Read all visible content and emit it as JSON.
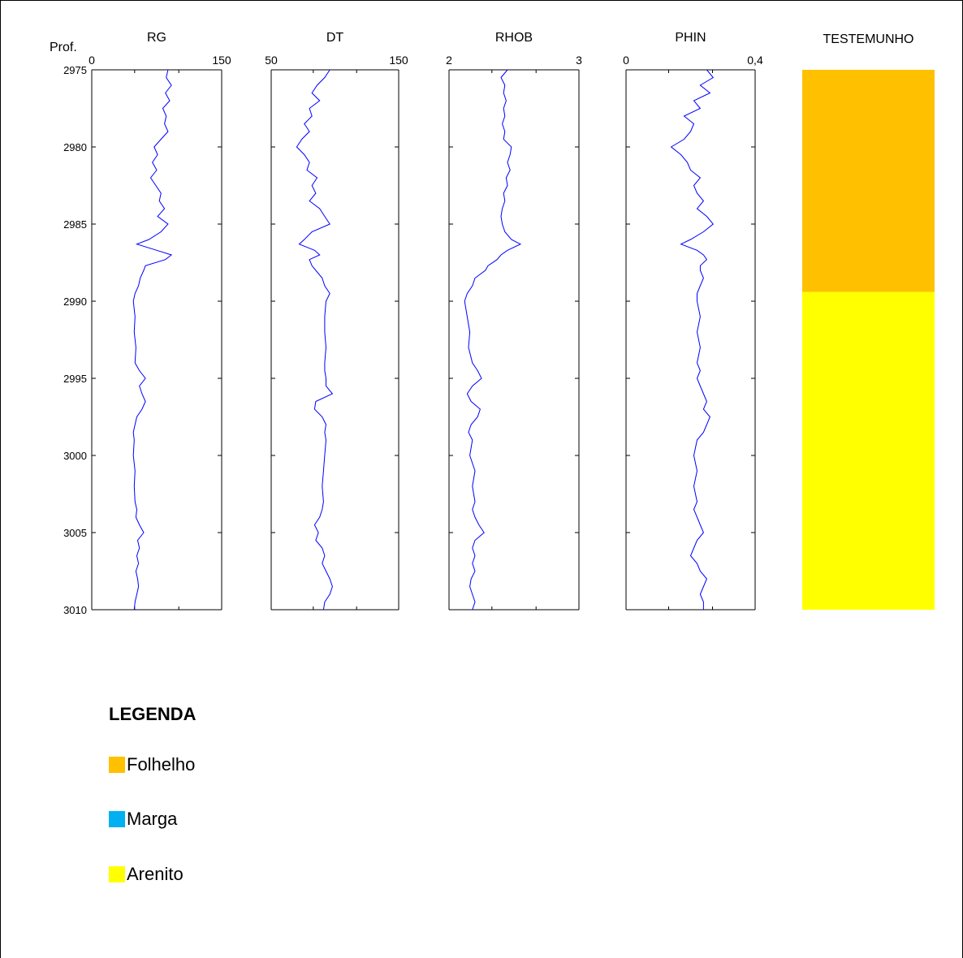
{
  "chart_data": {
    "type": "line",
    "depth_axis": {
      "label": "Prof.",
      "range": [
        2975,
        3010
      ],
      "ticks": [
        2975,
        2980,
        2985,
        2990,
        2995,
        3000,
        3005,
        3010
      ],
      "reversed": true
    },
    "series_color": "#0000ff",
    "tracks": [
      {
        "name": "RG",
        "xlim": [
          0,
          150
        ],
        "tick_labels": [
          "0",
          "150"
        ],
        "depth": [
          2975,
          2975.5,
          2976,
          2976.5,
          2977,
          2977.5,
          2978,
          2978.5,
          2979,
          2979.5,
          2980,
          2980.5,
          2981,
          2981.5,
          2982,
          2982.5,
          2983,
          2983.5,
          2984,
          2984.5,
          2985,
          2985.5,
          2986,
          2986.3,
          2986.7,
          2987,
          2987.3,
          2987.7,
          2988,
          2988.5,
          2989,
          2989.5,
          2990,
          2991,
          2992,
          2993,
          2994,
          2994.5,
          2995,
          2995.5,
          2996,
          2996.5,
          2997,
          2997.5,
          2998,
          2998.5,
          2999,
          3000,
          3001,
          3002,
          3003,
          3003.5,
          3004,
          3004.5,
          3005,
          3005.5,
          3006,
          3006.5,
          3007,
          3007.5,
          3008,
          3008.5,
          3009,
          3009.5,
          3010
        ],
        "values": [
          88,
          86,
          92,
          85,
          90,
          82,
          86,
          84,
          88,
          80,
          72,
          76,
          70,
          75,
          68,
          74,
          80,
          78,
          84,
          76,
          88,
          80,
          66,
          52,
          75,
          92,
          85,
          62,
          60,
          56,
          54,
          50,
          48,
          50,
          49,
          51,
          50,
          55,
          62,
          55,
          58,
          62,
          58,
          52,
          50,
          48,
          49,
          48,
          50,
          49,
          50,
          52,
          51,
          55,
          60,
          53,
          55,
          52,
          54,
          51,
          53,
          54,
          52,
          50,
          49
        ]
      },
      {
        "name": "DT",
        "xlim": [
          50,
          150
        ],
        "tick_labels": [
          "50",
          "150"
        ],
        "depth": [
          2975,
          2975.5,
          2976,
          2976.5,
          2977,
          2977.5,
          2978,
          2978.5,
          2979,
          2979.5,
          2980,
          2980.5,
          2981,
          2981.5,
          2982,
          2982.5,
          2983,
          2983.5,
          2984,
          2984.5,
          2985,
          2985.5,
          2986,
          2986.3,
          2986.7,
          2987,
          2987.3,
          2987.7,
          2988,
          2988.5,
          2989,
          2989.5,
          2990,
          2991,
          2992,
          2993,
          2994,
          2994.5,
          2995,
          2995.5,
          2996,
          2996.5,
          2997,
          2997.5,
          2998,
          2998.5,
          2999,
          3000,
          3001,
          3002,
          3003,
          3003.5,
          3004,
          3004.5,
          3005,
          3005.5,
          3006,
          3006.5,
          3007,
          3007.5,
          3008,
          3008.5,
          3009,
          3009.5,
          3010
        ],
        "values": [
          96,
          92,
          86,
          82,
          88,
          80,
          82,
          76,
          80,
          74,
          70,
          76,
          80,
          78,
          86,
          82,
          85,
          80,
          88,
          92,
          96,
          82,
          76,
          72,
          84,
          88,
          80,
          82,
          85,
          90,
          92,
          96,
          93,
          92,
          92,
          93,
          92,
          92,
          93,
          93,
          98,
          85,
          84,
          90,
          93,
          92,
          93,
          92,
          91,
          90,
          91,
          90,
          88,
          84,
          87,
          85,
          90,
          92,
          90,
          93,
          96,
          98,
          96,
          92,
          91
        ]
      },
      {
        "name": "RHOB",
        "xlim": [
          2,
          3
        ],
        "tick_labels": [
          "2",
          "3"
        ],
        "depth": [
          2975,
          2975.5,
          2976,
          2976.5,
          2977,
          2977.5,
          2978,
          2978.5,
          2979,
          2979.5,
          2980,
          2980.5,
          2981,
          2981.5,
          2982,
          2982.5,
          2983,
          2983.5,
          2984,
          2984.5,
          2985,
          2985.5,
          2986,
          2986.3,
          2986.7,
          2987,
          2987.3,
          2987.7,
          2988,
          2988.5,
          2989,
          2989.5,
          2990,
          2991,
          2992,
          2993,
          2994,
          2994.5,
          2995,
          2995.5,
          2996,
          2996.5,
          2997,
          2997.5,
          2998,
          2998.5,
          2999,
          3000,
          3001,
          3002,
          3003,
          3003.5,
          3004,
          3004.5,
          3005,
          3005.5,
          3006,
          3006.5,
          3007,
          3007.5,
          3008,
          3008.5,
          3009,
          3009.5,
          3010
        ],
        "values": [
          2.45,
          2.4,
          2.43,
          2.42,
          2.44,
          2.42,
          2.43,
          2.41,
          2.43,
          2.42,
          2.48,
          2.47,
          2.45,
          2.47,
          2.44,
          2.45,
          2.42,
          2.43,
          2.41,
          2.4,
          2.41,
          2.43,
          2.48,
          2.55,
          2.45,
          2.4,
          2.37,
          2.3,
          2.28,
          2.2,
          2.18,
          2.14,
          2.12,
          2.14,
          2.16,
          2.15,
          2.18,
          2.22,
          2.25,
          2.18,
          2.14,
          2.17,
          2.24,
          2.22,
          2.17,
          2.15,
          2.18,
          2.16,
          2.2,
          2.18,
          2.2,
          2.18,
          2.2,
          2.23,
          2.27,
          2.2,
          2.18,
          2.2,
          2.18,
          2.2,
          2.17,
          2.16,
          2.18,
          2.2,
          2.18
        ]
      },
      {
        "name": "PHIN",
        "xlim": [
          0,
          0.4
        ],
        "tick_labels": [
          "0",
          "0,4"
        ],
        "depth": [
          2975,
          2975.5,
          2976,
          2976.5,
          2977,
          2977.5,
          2978,
          2978.5,
          2979,
          2979.5,
          2980,
          2980.5,
          2981,
          2981.5,
          2982,
          2982.5,
          2983,
          2983.5,
          2984,
          2984.5,
          2985,
          2985.5,
          2986,
          2986.3,
          2986.7,
          2987,
          2987.3,
          2987.7,
          2988,
          2988.5,
          2989,
          2989.5,
          2990,
          2991,
          2992,
          2993,
          2994,
          2994.5,
          2995,
          2995.5,
          2996,
          2996.5,
          2997,
          2997.5,
          2998,
          2998.5,
          2999,
          3000,
          3001,
          3002,
          3003,
          3003.5,
          3004,
          3004.5,
          3005,
          3005.5,
          3006,
          3006.5,
          3007,
          3007.5,
          3008,
          3008.5,
          3009,
          3009.5,
          3010
        ],
        "values": [
          0.25,
          0.27,
          0.23,
          0.26,
          0.21,
          0.23,
          0.18,
          0.21,
          0.2,
          0.18,
          0.14,
          0.17,
          0.19,
          0.2,
          0.23,
          0.21,
          0.22,
          0.24,
          0.22,
          0.25,
          0.27,
          0.24,
          0.2,
          0.17,
          0.22,
          0.24,
          0.25,
          0.23,
          0.23,
          0.24,
          0.23,
          0.22,
          0.22,
          0.23,
          0.22,
          0.23,
          0.22,
          0.23,
          0.22,
          0.23,
          0.24,
          0.25,
          0.24,
          0.26,
          0.25,
          0.24,
          0.22,
          0.21,
          0.22,
          0.21,
          0.22,
          0.21,
          0.22,
          0.23,
          0.24,
          0.22,
          0.21,
          0.2,
          0.22,
          0.23,
          0.25,
          0.24,
          0.23,
          0.24,
          0.24
        ]
      }
    ],
    "core_track": {
      "name": "TESTEMUNHO",
      "intervals": [
        {
          "top": 2975,
          "base": 2989.4,
          "lithology": "Folhelho",
          "color": "#ffc000"
        },
        {
          "top": 2989.4,
          "base": 3010,
          "lithology": "Arenito",
          "color": "#ffff00"
        }
      ]
    }
  },
  "legend": {
    "title": "LEGENDA",
    "items": [
      {
        "label": "Folhelho",
        "color": "#ffc000"
      },
      {
        "label": "Marga",
        "color": "#00b0f0"
      },
      {
        "label": "Arenito",
        "color": "#ffff00"
      }
    ]
  }
}
